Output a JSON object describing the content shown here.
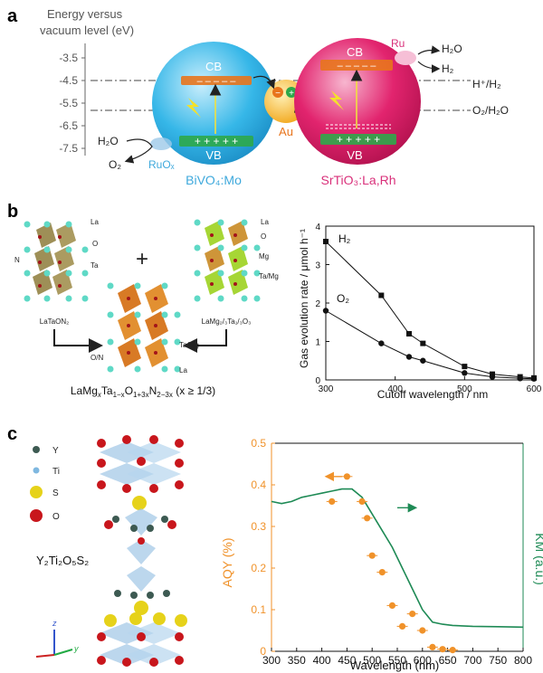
{
  "panel_a": {
    "label": "a",
    "axis_title_line1": "Energy versus",
    "axis_title_line2": "vacuum level (eV)",
    "ticks": [
      "-3.5",
      "-4.5",
      "-5.5",
      "-6.5",
      "-7.5"
    ],
    "cb_left": "CB",
    "vb_left": "VB",
    "cb_right": "CB",
    "vb_right": "VB",
    "left_material": "BiVO₄:Mo",
    "right_material": "SrTiO₃:La,Rh",
    "au_label": "Au",
    "ru_label": "Ru",
    "ruox_label": "RuOₓ",
    "h2o_left": "H₂O",
    "o2_left": "O₂",
    "h2o_right": "H₂O",
    "h2_right": "H₂",
    "redox_h": "H⁺/H₂",
    "redox_o": "O₂/H₂O",
    "colors": {
      "bivo4": "#36b7e8",
      "srtio3": "#e2246e",
      "au": "#f5b330",
      "label_blue": "#3fa9dc",
      "label_pink": "#d9307a",
      "orange": "#e8741c"
    }
  },
  "panel_b": {
    "label": "b",
    "plus": "+",
    "struct1_name": "LaTaON₂",
    "struct2_name": "LaMg₂/₃Ta₁/₃O₃",
    "struct_labels": {
      "la": "La",
      "o": "O",
      "n": "N",
      "ta": "Ta",
      "mg": "Mg",
      "tamg": "Ta/Mg",
      "on": "O/N"
    },
    "formula_main": "LaMg",
    "formula_x": "x",
    "formula_ta": "Ta",
    "formula_ta_sub": "1−x",
    "formula_o": "O",
    "formula_o_sub": "1+3x",
    "formula_n": "N",
    "formula_n_sub": "2−3x",
    "formula_cond": "(x ≥ 1/3)",
    "chart": {
      "ylabel": "Gas evolution rate / μmol h⁻¹",
      "xlabel": "Cutoff wavelength / nm",
      "xticks": [
        "300",
        "400",
        "500",
        "600"
      ],
      "yticks": [
        "0",
        "1",
        "2",
        "3",
        "4"
      ],
      "h2_label": "H₂",
      "o2_label": "O₂"
    }
  },
  "panel_c": {
    "label": "c",
    "legend": [
      {
        "name": "Y",
        "color": "#3d5a52"
      },
      {
        "name": "Ti",
        "color": "#7fb8e0"
      },
      {
        "name": "S",
        "color": "#e6d21a"
      },
      {
        "name": "O",
        "color": "#c8161c"
      }
    ],
    "compound": "Y₂Ti₂O₅S₂",
    "chart": {
      "ylabel_left": "AQY (%)",
      "ylabel_right": "KM (a.u.)",
      "xlabel": "Wavelength (nm)",
      "xticks": [
        "300",
        "350",
        "400",
        "450",
        "500",
        "550",
        "600",
        "650",
        "700",
        "750",
        "800"
      ],
      "yticks": [
        "0",
        "0.1",
        "0.2",
        "0.3",
        "0.4",
        "0.5"
      ],
      "colors": {
        "aqy": "#f0922a",
        "km": "#1e8a55"
      }
    }
  },
  "chart_data": [
    {
      "type": "line",
      "xlabel": "Cutoff wavelength / nm",
      "ylabel": "Gas evolution rate / μmol h⁻¹",
      "xlim": [
        300,
        600
      ],
      "ylim": [
        0,
        4
      ],
      "series": [
        {
          "name": "H₂",
          "x": [
            300,
            380,
            420,
            440,
            500,
            540,
            580,
            600
          ],
          "y": [
            3.6,
            2.2,
            1.2,
            0.95,
            0.35,
            0.15,
            0.08,
            0.05
          ]
        },
        {
          "name": "O₂",
          "x": [
            300,
            380,
            420,
            440,
            500,
            540,
            580,
            600
          ],
          "y": [
            1.8,
            0.95,
            0.6,
            0.5,
            0.18,
            0.08,
            0.04,
            0.03
          ]
        }
      ]
    },
    {
      "type": "scatter",
      "xlabel": "Wavelength (nm)",
      "ylabel": "AQY (%)",
      "xlim": [
        300,
        800
      ],
      "ylim": [
        0,
        0.5
      ],
      "series": [
        {
          "name": "AQY",
          "x": [
            420,
            450,
            480,
            490,
            500,
            520,
            540,
            560,
            580,
            600,
            620,
            640,
            660
          ],
          "y": [
            0.36,
            0.42,
            0.36,
            0.32,
            0.23,
            0.19,
            0.11,
            0.06,
            0.09,
            0.05,
            0.01,
            0.005,
            0.003
          ]
        },
        {
          "name": "KM",
          "x": [
            300,
            320,
            340,
            360,
            380,
            400,
            420,
            440,
            460,
            480,
            500,
            520,
            540,
            560,
            580,
            600,
            620,
            640,
            660,
            700,
            750,
            800
          ],
          "y": [
            0.36,
            0.355,
            0.36,
            0.37,
            0.375,
            0.38,
            0.385,
            0.39,
            0.39,
            0.37,
            0.33,
            0.29,
            0.25,
            0.2,
            0.15,
            0.1,
            0.07,
            0.065,
            0.062,
            0.06,
            0.059,
            0.058
          ]
        }
      ]
    }
  ]
}
